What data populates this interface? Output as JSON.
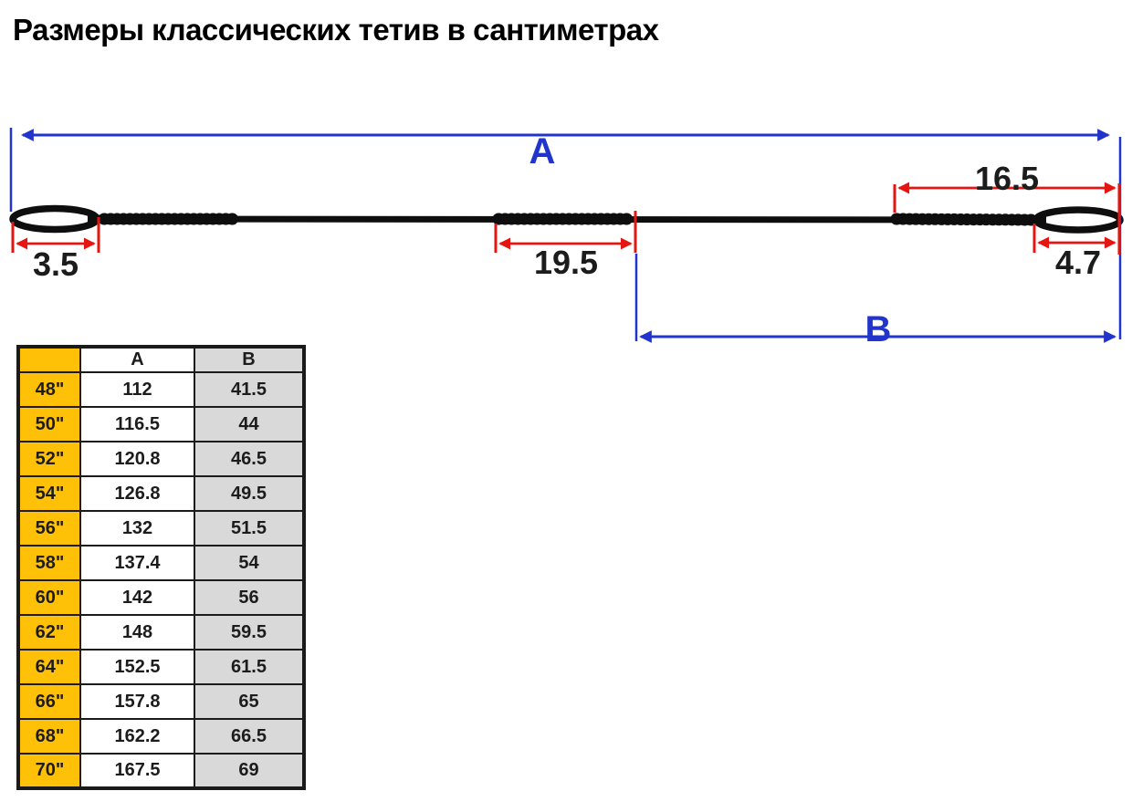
{
  "title": "Размеры классических тетив в сантиметрах",
  "diagram": {
    "overall_length_label": "A",
    "brace_section_label": "B",
    "left_loop_cm": "3.5",
    "center_serving_cm": "19.5",
    "right_serving_cm": "16.5",
    "right_loop_cm": "4.7"
  },
  "colors": {
    "dim_blue": "#2134cc",
    "dim_red": "#e51511",
    "string_black": "#0e0e0e",
    "table_orange": "#ffc008",
    "table_gray": "#d9d9d9",
    "grid_black": "#1a1a1a",
    "text_black": "#1c1c1c"
  },
  "table": {
    "headers": [
      "",
      "A",
      "B"
    ],
    "rows": [
      [
        "48\"",
        "112",
        "41.5"
      ],
      [
        "50\"",
        "116.5",
        "44"
      ],
      [
        "52\"",
        "120.8",
        "46.5"
      ],
      [
        "54\"",
        "126.8",
        "49.5"
      ],
      [
        "56\"",
        "132",
        "51.5"
      ],
      [
        "58\"",
        "137.4",
        "54"
      ],
      [
        "60\"",
        "142",
        "56"
      ],
      [
        "62\"",
        "148",
        "59.5"
      ],
      [
        "64\"",
        "152.5",
        "61.5"
      ],
      [
        "66\"",
        "157.8",
        "65"
      ],
      [
        "68\"",
        "162.2",
        "66.5"
      ],
      [
        "70\"",
        "167.5",
        "69"
      ]
    ]
  }
}
